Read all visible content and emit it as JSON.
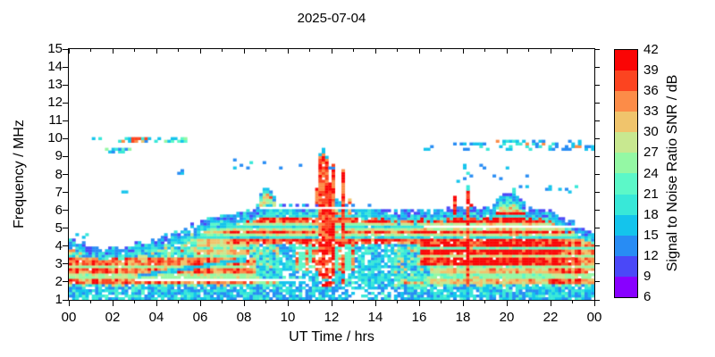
{
  "title": "2025-07-04",
  "axes": {
    "x": {
      "label": "UT Time / hrs",
      "range": [
        0,
        24
      ],
      "tick_hours": [
        0,
        2,
        4,
        6,
        8,
        10,
        12,
        14,
        16,
        18,
        20,
        22,
        24
      ],
      "tick_labels": [
        "00",
        "02",
        "04",
        "06",
        "08",
        "10",
        "12",
        "14",
        "16",
        "18",
        "20",
        "22",
        "00"
      ],
      "minor_hours": [
        1,
        3,
        5,
        7,
        9,
        11,
        13,
        15,
        17,
        19,
        21,
        23
      ]
    },
    "y": {
      "label": "Frequency / MHz",
      "range": [
        1,
        15
      ],
      "ticks": [
        1,
        2,
        3,
        4,
        5,
        6,
        7,
        8,
        9,
        10,
        11,
        12,
        13,
        14,
        15
      ]
    }
  },
  "colorbar": {
    "label": "Signal to Noise Ratio SNR / dB",
    "range": [
      6,
      42
    ],
    "ticks": [
      42,
      39,
      36,
      33,
      30,
      27,
      24,
      21,
      18,
      15,
      12,
      9,
      6
    ],
    "colors_low_to_high": [
      "#8800ff",
      "#4a48f8",
      "#288cf4",
      "#14c4ec",
      "#38e8d8",
      "#5cf8c8",
      "#94f8a4",
      "#c8e890",
      "#f0c46c",
      "#fc8c48",
      "#fc4420",
      "#fa0505"
    ]
  },
  "chart_data": {
    "type": "heatmap",
    "title": "2025-07-04",
    "xlabel": "UT Time / hrs",
    "ylabel": "Frequency / MHz",
    "zlabel": "Signal to Noise Ratio SNR / dB",
    "xlim": [
      0,
      24
    ],
    "ylim": [
      1,
      15
    ],
    "zlim": [
      6,
      42
    ],
    "z_step_db": 3,
    "cell_hr": 0.15,
    "cell_mhz": 0.1489,
    "seed": 7,
    "envelope_hours": [
      0,
      1,
      2,
      3,
      4,
      5,
      6,
      7,
      8,
      9,
      10,
      11,
      12,
      13,
      14,
      15,
      16,
      17,
      18,
      19,
      20,
      21,
      22,
      23,
      24
    ],
    "envelope_mhz": [
      4.45,
      3.95,
      3.85,
      4.1,
      4.35,
      4.8,
      5.3,
      5.65,
      5.9,
      6.3,
      6.25,
      6.3,
      6.55,
      6.4,
      6.1,
      5.95,
      6.0,
      6.05,
      6.1,
      6.15,
      6.2,
      6.25,
      5.9,
      5.35,
      4.65
    ],
    "base_snr_db": 19,
    "red_zones": [
      {
        "t": [
          0.0,
          8.6
        ],
        "f": [
          1.85,
          3.45
        ],
        "intensity": 0.62
      },
      {
        "t": [
          5.8,
          8.3
        ],
        "f": [
          3.2,
          5.3
        ],
        "intensity": 0.42
      },
      {
        "t": [
          7.0,
          16.2
        ],
        "f": [
          4.2,
          6.08
        ],
        "intensity": 0.72
      },
      {
        "t": [
          10.4,
          13.1
        ],
        "f": [
          2.6,
          6.1
        ],
        "intensity": 0.5,
        "vertical": true
      },
      {
        "t": [
          16.0,
          22.3
        ],
        "f": [
          2.9,
          6.05
        ],
        "intensity": 0.88
      },
      {
        "t": [
          16.5,
          22.0
        ],
        "f": [
          1.9,
          2.95
        ],
        "intensity": 0.45
      },
      {
        "t": [
          21.9,
          24.0
        ],
        "f": [
          1.9,
          4.95
        ],
        "intensity": 0.6
      }
    ],
    "blue_patch": {
      "t": [
        9.6,
        14.8
      ],
      "f": [
        1.7,
        4.25
      ],
      "dropout": 0.18
    },
    "bottom_notch": {
      "t": [
        12.8,
        15.2
      ],
      "f": [
        1.0,
        1.65
      ],
      "dropout": 0.55
    },
    "dropout_lines": [
      {
        "f": 6.2,
        "t": [
          7.4,
          16.2
        ]
      },
      {
        "f": 5.05,
        "t": [
          16.2,
          23.9
        ]
      },
      {
        "f": 2.1,
        "t": [
          3.0,
          10.8
        ]
      }
    ],
    "diagonal_traces": [
      {
        "from": [
          3.2,
          2.35
        ],
        "to": [
          8.2,
          3.3
        ]
      },
      {
        "from": [
          10.0,
          1.45
        ],
        "to": [
          14.6,
          3.1
        ]
      }
    ],
    "plumes": [
      {
        "t": 9.05,
        "hw": 0.45,
        "top": 7.25,
        "style": "mixed"
      },
      {
        "t": 11.6,
        "hw": 0.3,
        "top": 9.35,
        "style": "red"
      },
      {
        "t": 12.05,
        "hw": 0.15,
        "top": 8.6,
        "style": "red"
      },
      {
        "t": 12.55,
        "hw": 0.08,
        "top": 8.25,
        "style": "red"
      },
      {
        "t": 18.25,
        "hw": 0.13,
        "top": 7.4,
        "style": "red"
      },
      {
        "t": 18.45,
        "hw": 0.06,
        "top": 6.9,
        "style": "red"
      },
      {
        "t": 20.1,
        "hw": 0.8,
        "top": 6.95,
        "style": "cool"
      }
    ],
    "spike_ranges": [
      [
        8.4,
        13.4
      ],
      [
        16.2,
        19.3
      ]
    ],
    "scatter_streaks": [
      {
        "t": [
          1.0,
          1.6
        ],
        "f": [
          9.85,
          10.05
        ],
        "density": 0.4,
        "palette": "cool"
      },
      {
        "t": [
          2.25,
          3.75
        ],
        "f": [
          9.85,
          10.12
        ],
        "density": 0.8,
        "palette": "warm_mix"
      },
      {
        "t": [
          1.7,
          2.9
        ],
        "f": [
          9.25,
          9.5
        ],
        "density": 0.75,
        "palette": "green_mix"
      },
      {
        "t": [
          3.85,
          5.35
        ],
        "f": [
          9.8,
          10.08
        ],
        "density": 0.7,
        "palette": "green_mix"
      },
      {
        "t": [
          0.3,
          0.9
        ],
        "f": [
          4.5,
          4.75
        ],
        "density": 0.5,
        "palette": "cool"
      },
      {
        "t": [
          2.35,
          2.65
        ],
        "f": [
          6.9,
          7.15
        ],
        "density": 0.9,
        "palette": "cool"
      },
      {
        "t": [
          4.8,
          5.2
        ],
        "f": [
          8.05,
          8.3
        ],
        "density": 0.5,
        "palette": "cool"
      },
      {
        "t": [
          7.3,
          13.2
        ],
        "f": [
          8.3,
          8.85
        ],
        "density": 0.05,
        "palette": "cool"
      },
      {
        "t": [
          9.3,
          12.95
        ],
        "f": [
          9.3,
          9.55
        ],
        "density": 0.05,
        "palette": "cool"
      },
      {
        "t": [
          16.25,
          16.7
        ],
        "f": [
          9.4,
          9.65
        ],
        "density": 0.5,
        "palette": "cool"
      },
      {
        "t": [
          17.55,
          19.25
        ],
        "f": [
          9.35,
          9.8
        ],
        "density": 0.3,
        "palette": "cool"
      },
      {
        "t": [
          19.3,
          23.45
        ],
        "f": [
          9.35,
          10.0
        ],
        "density": 0.33,
        "palette": "cool_mix"
      },
      {
        "t": [
          18.0,
          21.0
        ],
        "f": [
          8.35,
          8.8
        ],
        "density": 0.12,
        "palette": "cool"
      },
      {
        "t": [
          19.4,
          22.0
        ],
        "f": [
          7.75,
          8.05
        ],
        "density": 0.1,
        "palette": "cool"
      },
      {
        "t": [
          23.55,
          23.95
        ],
        "f": [
          9.35,
          9.6
        ],
        "density": 0.55,
        "palette": "cool"
      },
      {
        "t": [
          17.7,
          18.6
        ],
        "f": [
          7.6,
          8.1
        ],
        "density": 0.25,
        "palette": "cool"
      },
      {
        "t": [
          20.3,
          23.3
        ],
        "f": [
          6.9,
          7.4
        ],
        "density": 0.08,
        "palette": "cool"
      }
    ]
  }
}
